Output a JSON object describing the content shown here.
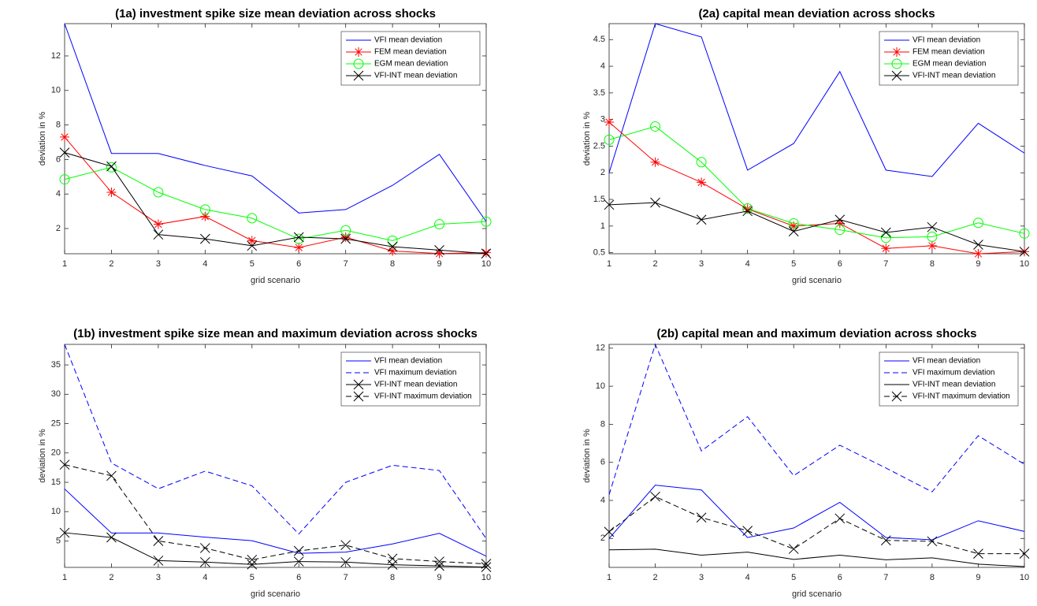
{
  "chart_data": [
    {
      "type": "line",
      "title": "(1a) investment spike size mean deviation across shocks",
      "x_label": "grid scenario",
      "y_label": "deviation in %",
      "x": [
        1,
        2,
        3,
        4,
        5,
        6,
        7,
        8,
        9,
        10
      ],
      "xlim": [
        1,
        10
      ],
      "xticks": [
        1,
        2,
        3,
        4,
        5,
        6,
        7,
        8,
        9,
        10
      ],
      "ylim": [
        0.54,
        13.87
      ],
      "yticks": [
        2,
        4,
        6,
        8,
        10,
        12
      ],
      "legend": "northeast",
      "series": [
        {
          "name": "VFI mean deviation",
          "color": "#0000ff",
          "dash": "solid",
          "marker": "none",
          "values": [
            13.87,
            6.35,
            6.35,
            5.65,
            5.05,
            2.9,
            3.1,
            4.5,
            6.3,
            2.4
          ]
        },
        {
          "name": "FEM mean deviation",
          "color": "#ff0000",
          "dash": "solid",
          "marker": "star",
          "values": [
            7.3,
            4.1,
            2.25,
            2.7,
            1.3,
            0.9,
            1.5,
            0.7,
            0.55,
            0.6
          ]
        },
        {
          "name": "EGM mean deviation",
          "color": "#00ff00",
          "dash": "solid",
          "marker": "circle",
          "values": [
            4.85,
            5.55,
            4.1,
            3.1,
            2.6,
            1.4,
            1.9,
            1.3,
            2.25,
            2.4
          ]
        },
        {
          "name": "VFI-INT mean deviation",
          "color": "#000000",
          "dash": "solid",
          "marker": "x",
          "values": [
            6.4,
            5.6,
            1.65,
            1.4,
            1.0,
            1.5,
            1.4,
            0.95,
            0.75,
            0.55
          ]
        }
      ]
    },
    {
      "type": "line",
      "title": "(2a) capital mean deviation across shocks",
      "x_label": "grid scenario",
      "y_label": "deviation in %",
      "x": [
        1,
        2,
        3,
        4,
        5,
        6,
        7,
        8,
        9,
        10
      ],
      "xlim": [
        1,
        10
      ],
      "xticks": [
        1,
        2,
        3,
        4,
        5,
        6,
        7,
        8,
        9,
        10
      ],
      "ylim": [
        0.48,
        4.8
      ],
      "yticks": [
        0.5,
        1,
        1.5,
        2,
        2.5,
        3,
        3.5,
        4,
        4.5
      ],
      "legend": "northeast",
      "series": [
        {
          "name": "VFI mean deviation",
          "color": "#0000ff",
          "dash": "solid",
          "marker": "none",
          "values": [
            2.0,
            4.8,
            4.55,
            2.05,
            2.55,
            3.9,
            2.05,
            1.93,
            2.93,
            2.37
          ]
        },
        {
          "name": "FEM mean deviation",
          "color": "#ff0000",
          "dash": "solid",
          "marker": "star",
          "values": [
            2.95,
            2.2,
            1.82,
            1.32,
            1.0,
            1.05,
            0.58,
            0.63,
            0.48,
            0.52
          ]
        },
        {
          "name": "EGM mean deviation",
          "color": "#00ff00",
          "dash": "solid",
          "marker": "circle",
          "values": [
            2.62,
            2.87,
            2.2,
            1.33,
            1.05,
            0.93,
            0.78,
            0.8,
            1.06,
            0.86
          ]
        },
        {
          "name": "VFI-INT mean deviation",
          "color": "#000000",
          "dash": "solid",
          "marker": "x",
          "values": [
            1.4,
            1.44,
            1.12,
            1.28,
            0.9,
            1.12,
            0.88,
            0.98,
            0.65,
            0.52
          ]
        }
      ]
    },
    {
      "type": "line",
      "title": "(1b) investment spike size mean and maximum deviation across shocks",
      "x_label": "grid scenario",
      "y_label": "deviation in %",
      "x": [
        1,
        2,
        3,
        4,
        5,
        6,
        7,
        8,
        9,
        10
      ],
      "xlim": [
        1,
        10
      ],
      "xticks": [
        1,
        2,
        3,
        4,
        5,
        6,
        7,
        8,
        9,
        10
      ],
      "ylim": [
        0.5,
        38.5
      ],
      "yticks": [
        5,
        10,
        15,
        20,
        25,
        30,
        35
      ],
      "legend": "northeast",
      "series": [
        {
          "name": "VFI mean deviation",
          "color": "#0000ff",
          "dash": "solid",
          "marker": "none",
          "values": [
            13.87,
            6.35,
            6.35,
            5.65,
            5.05,
            2.9,
            3.1,
            4.5,
            6.3,
            2.4
          ]
        },
        {
          "name": "VFI maximum deviation",
          "color": "#0000ff",
          "dash": "dashed",
          "marker": "none",
          "values": [
            38.5,
            18.3,
            13.9,
            16.9,
            14.4,
            6.2,
            15.0,
            17.9,
            17.0,
            5.4
          ]
        },
        {
          "name": "VFI-INT mean deviation",
          "color": "#000000",
          "dash": "solid",
          "marker": "x",
          "values": [
            6.4,
            5.6,
            1.65,
            1.4,
            1.0,
            1.5,
            1.4,
            0.95,
            0.75,
            0.55
          ]
        },
        {
          "name": "VFI-INT maximum deviation",
          "color": "#000000",
          "dash": "dashed",
          "marker": "x",
          "values": [
            18.0,
            16.1,
            5.0,
            3.8,
            1.8,
            3.3,
            4.3,
            2.0,
            1.5,
            1.1
          ]
        }
      ]
    },
    {
      "type": "line",
      "title": "(2b) capital mean and maximum deviation across shocks",
      "x_label": "grid scenario",
      "y_label": "deviation in %",
      "x": [
        1,
        2,
        3,
        4,
        5,
        6,
        7,
        8,
        9,
        10
      ],
      "xlim": [
        1,
        10
      ],
      "xticks": [
        1,
        2,
        3,
        4,
        5,
        6,
        7,
        8,
        9,
        10
      ],
      "ylim": [
        0.48,
        12.2
      ],
      "yticks": [
        2,
        4,
        6,
        8,
        10,
        12
      ],
      "legend": "northeast",
      "series": [
        {
          "name": "VFI mean deviation",
          "color": "#0000ff",
          "dash": "solid",
          "marker": "none",
          "values": [
            2.0,
            4.8,
            4.55,
            2.05,
            2.55,
            3.9,
            2.05,
            1.93,
            2.93,
            2.37
          ]
        },
        {
          "name": "VFI maximum deviation",
          "color": "#0000ff",
          "dash": "dashed",
          "marker": "none",
          "values": [
            4.3,
            12.2,
            6.6,
            8.4,
            5.3,
            6.9,
            5.7,
            4.45,
            7.4,
            5.9
          ]
        },
        {
          "name": "VFI-INT mean deviation",
          "color": "#000000",
          "dash": "solid",
          "marker": "none",
          "values": [
            1.4,
            1.44,
            1.12,
            1.28,
            0.9,
            1.12,
            0.88,
            0.98,
            0.65,
            0.52
          ]
        },
        {
          "name": "VFI-INT maximum deviation",
          "color": "#000000",
          "dash": "dashed",
          "marker": "x",
          "values": [
            2.35,
            4.2,
            3.1,
            2.4,
            1.45,
            3.05,
            1.9,
            1.85,
            1.2,
            1.2
          ]
        }
      ]
    }
  ]
}
